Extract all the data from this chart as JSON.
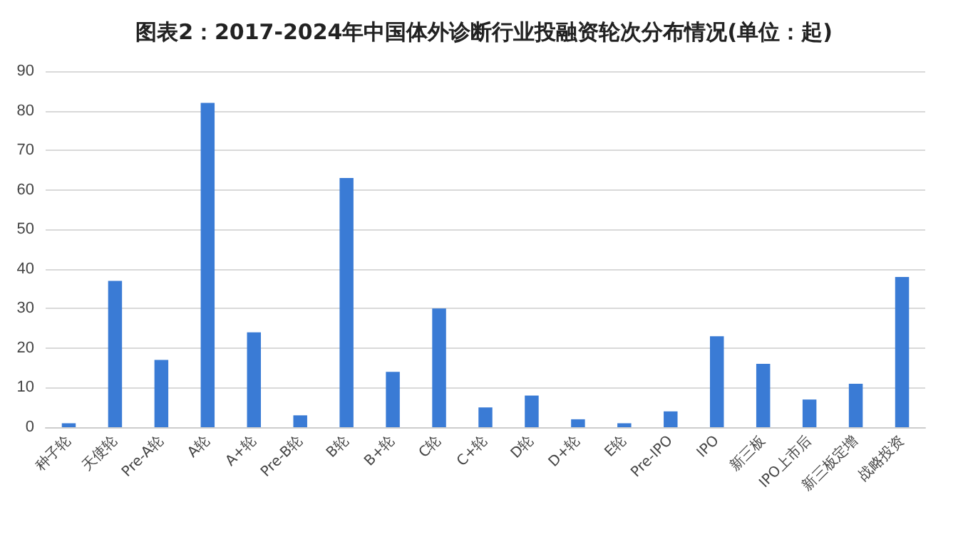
{
  "chart_data": {
    "type": "bar",
    "title": "图表2：2017-2024年中国体外诊断行业投融资轮次分布情况(单位：起)",
    "categories": [
      "种子轮",
      "天使轮",
      "Pre-A轮",
      "A轮",
      "A+轮",
      "Pre-B轮",
      "B轮",
      "B+轮",
      "C轮",
      "C+轮",
      "D轮",
      "D+轮",
      "E轮",
      "Pre-IPO",
      "IPO",
      "新三板",
      "IPO上市后",
      "新三板定增",
      "战略投资"
    ],
    "values": [
      1,
      37,
      17,
      82,
      24,
      3,
      63,
      14,
      30,
      5,
      8,
      2,
      1,
      4,
      23,
      16,
      7,
      11,
      38
    ],
    "color": "#3a7bd5",
    "ylim": [
      0,
      90
    ],
    "yticks": [
      0,
      10,
      20,
      30,
      40,
      50,
      60,
      70,
      80,
      90
    ],
    "grid": "y"
  }
}
